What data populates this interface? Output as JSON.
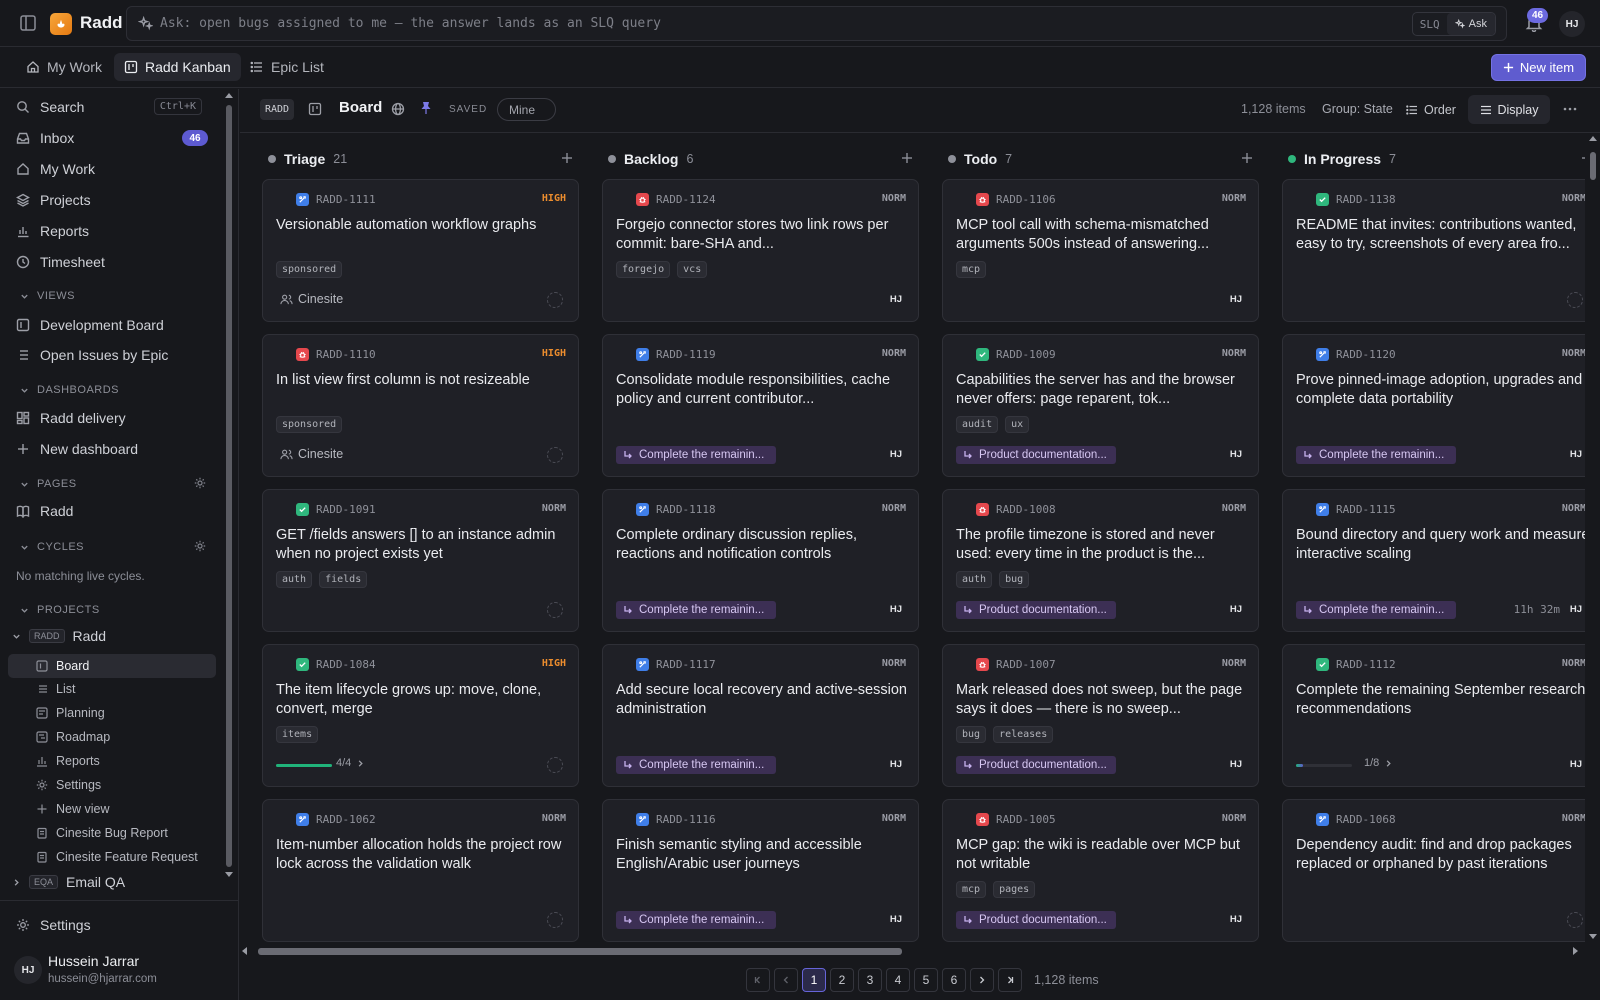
{
  "app": {
    "name": "Radd",
    "notification_count": "46",
    "user_initials": "HJ"
  },
  "ask": {
    "placeholder": "Ask: open bugs assigned to me — the answer lands as an SLQ query",
    "mode_label": "SLQ",
    "button_label": "Ask"
  },
  "tabs": [
    {
      "label": "My Work",
      "icon": "home-icon"
    },
    {
      "label": "Radd Kanban",
      "icon": "board-icon"
    },
    {
      "label": "Epic List",
      "icon": "list-icon"
    }
  ],
  "new_item_label": "New item",
  "sidebar": {
    "search_label": "Search",
    "search_shortcut": "Ctrl+K",
    "inbox_label": "Inbox",
    "inbox_count": "46",
    "my_work_label": "My Work",
    "projects_label": "Projects",
    "reports_label": "Reports",
    "timesheet_label": "Timesheet",
    "views_heading": "VIEWS",
    "views": [
      "Development Board",
      "Open Issues by Epic"
    ],
    "dashboards_heading": "DASHBOARDS",
    "dashboards": [
      "Radd delivery"
    ],
    "new_dashboard_label": "New dashboard",
    "pages_heading": "PAGES",
    "pages": [
      "Radd"
    ],
    "cycles_heading": "CYCLES",
    "cycles_empty": "No matching live cycles.",
    "projects_heading": "PROJECTS",
    "project": {
      "key": "RADD",
      "name": "Radd"
    },
    "project_items": [
      "Board",
      "List",
      "Planning",
      "Roadmap",
      "Reports",
      "Settings",
      "New view",
      "Cinesite Bug Report",
      "Cinesite Feature Request"
    ],
    "other_project": {
      "key": "EQA",
      "name": "Email QA"
    },
    "settings_label": "Settings",
    "user": {
      "initials": "HJ",
      "name": "Hussein Jarrar",
      "email": "hussein@hjarrar.com"
    }
  },
  "toolbar": {
    "project_key": "RADD",
    "board_title": "Board",
    "saved_label": "SAVED",
    "filter_label": "Mine",
    "item_count": "1,128 items",
    "group_label": "Group: State",
    "order_label": "Order",
    "display_label": "Display"
  },
  "columns": [
    {
      "name": "Triage",
      "count": "21",
      "dot_color": "#8e9099",
      "cards": [
        {
          "id": "RADD-1111",
          "type": "story",
          "priority": "HIGH",
          "title": "Versionable automation workflow graphs",
          "tags": [
            "sponsored"
          ],
          "client": "Cinesite"
        },
        {
          "id": "RADD-1110",
          "type": "bug",
          "priority": "HIGH",
          "title": "In list view first column is not resizeable",
          "tags": [
            "sponsored"
          ],
          "client": "Cinesite"
        },
        {
          "id": "RADD-1091",
          "type": "task",
          "priority": "NORM",
          "title": "GET /fields answers [] to an instance admin when no project exists yet",
          "tags": [
            "auth",
            "fields"
          ]
        },
        {
          "id": "RADD-1084",
          "type": "task",
          "priority": "HIGH",
          "title": "The item lifecycle grows up: move, clone, convert, merge",
          "tags": [
            "items"
          ],
          "progress": 1.0,
          "progress_label": "4/4"
        },
        {
          "id": "RADD-1062",
          "type": "story",
          "priority": "NORM",
          "title": "Item-number allocation holds the project row lock across the validation walk",
          "tags": []
        }
      ]
    },
    {
      "name": "Backlog",
      "count": "6",
      "dot_color": "#8e9099",
      "cards": [
        {
          "id": "RADD-1124",
          "type": "bug",
          "priority": "NORM",
          "title": "Forgejo connector stores two link rows per commit: bare-SHA and...",
          "tags": [
            "forgejo",
            "vcs"
          ],
          "assignee": "HJ"
        },
        {
          "id": "RADD-1119",
          "type": "story",
          "priority": "NORM",
          "title": "Consolidate module responsibilities, cache policy and current contributor...",
          "tags": [],
          "epic": "Complete the remainin...",
          "assignee": "HJ"
        },
        {
          "id": "RADD-1118",
          "type": "story",
          "priority": "NORM",
          "title": "Complete ordinary discussion replies, reactions and notification controls",
          "tags": [],
          "epic": "Complete the remainin...",
          "assignee": "HJ"
        },
        {
          "id": "RADD-1117",
          "type": "story",
          "priority": "NORM",
          "title": "Add secure local recovery and active-session administration",
          "tags": [],
          "epic": "Complete the remainin...",
          "assignee": "HJ"
        },
        {
          "id": "RADD-1116",
          "type": "story",
          "priority": "NORM",
          "title": "Finish semantic styling and accessible English/Arabic user journeys",
          "tags": [],
          "epic": "Complete the remainin...",
          "assignee": "HJ"
        }
      ]
    },
    {
      "name": "Todo",
      "count": "7",
      "dot_color": "#8e9099",
      "cards": [
        {
          "id": "RADD-1106",
          "type": "bug",
          "priority": "NORM",
          "title": "MCP tool call with schema-mismatched arguments 500s instead of answering...",
          "tags": [
            "mcp"
          ],
          "assignee": "HJ"
        },
        {
          "id": "RADD-1009",
          "type": "task",
          "priority": "NORM",
          "title": "Capabilities the server has and the browser never offers: page reparent, tok...",
          "tags": [
            "audit",
            "ux"
          ],
          "epic": "Product documentation...",
          "assignee": "HJ"
        },
        {
          "id": "RADD-1008",
          "type": "bug",
          "priority": "NORM",
          "title": "The profile timezone is stored and never used: every time in the product is the...",
          "tags": [
            "auth",
            "bug"
          ],
          "epic": "Product documentation...",
          "assignee": "HJ"
        },
        {
          "id": "RADD-1007",
          "type": "bug",
          "priority": "NORM",
          "title": "Mark released does not sweep, but the page says it does — there is no sweep...",
          "tags": [
            "bug",
            "releases"
          ],
          "epic": "Product documentation...",
          "assignee": "HJ"
        },
        {
          "id": "RADD-1005",
          "type": "bug",
          "priority": "NORM",
          "title": "MCP gap: the wiki is readable over MCP but not writable",
          "tags": [
            "mcp",
            "pages"
          ],
          "epic": "Product documentation...",
          "assignee": "HJ"
        }
      ]
    },
    {
      "name": "In Progress",
      "count": "7",
      "dot_color": "#2fb77d",
      "cards": [
        {
          "id": "RADD-1138",
          "type": "task",
          "priority": "NORM",
          "title": "README that invites: contributions wanted, easy to try, screenshots of every area fro...",
          "tags": []
        },
        {
          "id": "RADD-1120",
          "type": "story",
          "priority": "NORM",
          "title": "Prove pinned-image adoption, upgrades and complete data portability",
          "tags": [],
          "epic": "Complete the remainin...",
          "assignee": "HJ"
        },
        {
          "id": "RADD-1115",
          "type": "story",
          "priority": "NORM",
          "title": "Bound directory and query work and measure interactive scaling",
          "tags": [],
          "epic": "Complete the remainin...",
          "time": "11h 32m",
          "assignee": "HJ"
        },
        {
          "id": "RADD-1112",
          "type": "task",
          "priority": "NORM",
          "title": "Complete the remaining September research recommendations",
          "tags": [],
          "progress": 0.125,
          "progress_label": "1/8",
          "assignee": "HJ"
        },
        {
          "id": "RADD-1068",
          "type": "story",
          "priority": "NORM",
          "title": "Dependency audit: find and drop packages replaced or orphaned by past iterations",
          "tags": []
        }
      ]
    }
  ],
  "type_colors": {
    "story": "#3f7ee8",
    "bug": "#e5484d",
    "task": "#2fb77d"
  },
  "pagination": {
    "pages": [
      "1",
      "2",
      "3",
      "4",
      "5",
      "6"
    ],
    "current": "1",
    "total": "1,128 items"
  }
}
